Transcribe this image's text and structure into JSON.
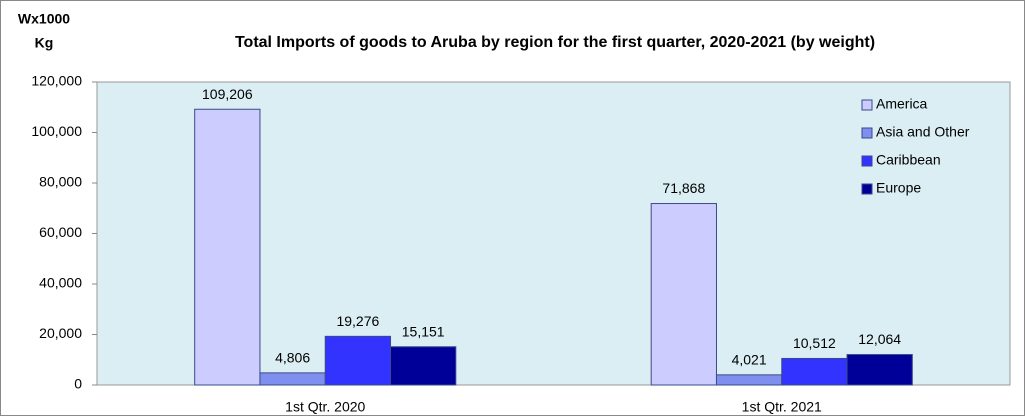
{
  "chart_data": {
    "type": "bar",
    "title": "Total Imports of goods to Aruba  by region for the first quarter, 2020-2021 (by weight)",
    "y_label_lines": [
      "Wx1000",
      "Kg"
    ],
    "categories": [
      "1st Qtr. 2020",
      "1st Qtr. 2021"
    ],
    "series": [
      {
        "name": "America",
        "color": "#ccccff",
        "values": [
          109206,
          71868
        ],
        "value_labels": [
          "109,206",
          "71,868"
        ]
      },
      {
        "name": "Asia and Other",
        "color": "#7f8ff0",
        "values": [
          4806,
          4021
        ],
        "value_labels": [
          "4,806",
          "4,021"
        ]
      },
      {
        "name": "Caribbean",
        "color": "#3333ff",
        "values": [
          19276,
          10512
        ],
        "value_labels": [
          "19,276",
          "10,512"
        ]
      },
      {
        "name": "Europe",
        "color": "#000099",
        "values": [
          15151,
          12064
        ],
        "value_labels": [
          "15,151",
          "12,064"
        ]
      }
    ],
    "ylim": [
      0,
      120000
    ],
    "yticks": [
      {
        "value": 0,
        "label": "0"
      },
      {
        "value": 20000,
        "label": "20,000"
      },
      {
        "value": 40000,
        "label": "40,000"
      },
      {
        "value": 60000,
        "label": "60,000"
      },
      {
        "value": 80000,
        "label": "80,000"
      },
      {
        "value": 100000,
        "label": "100,000"
      },
      {
        "value": 120000,
        "label": "120,000"
      }
    ],
    "legend": "upper right"
  }
}
